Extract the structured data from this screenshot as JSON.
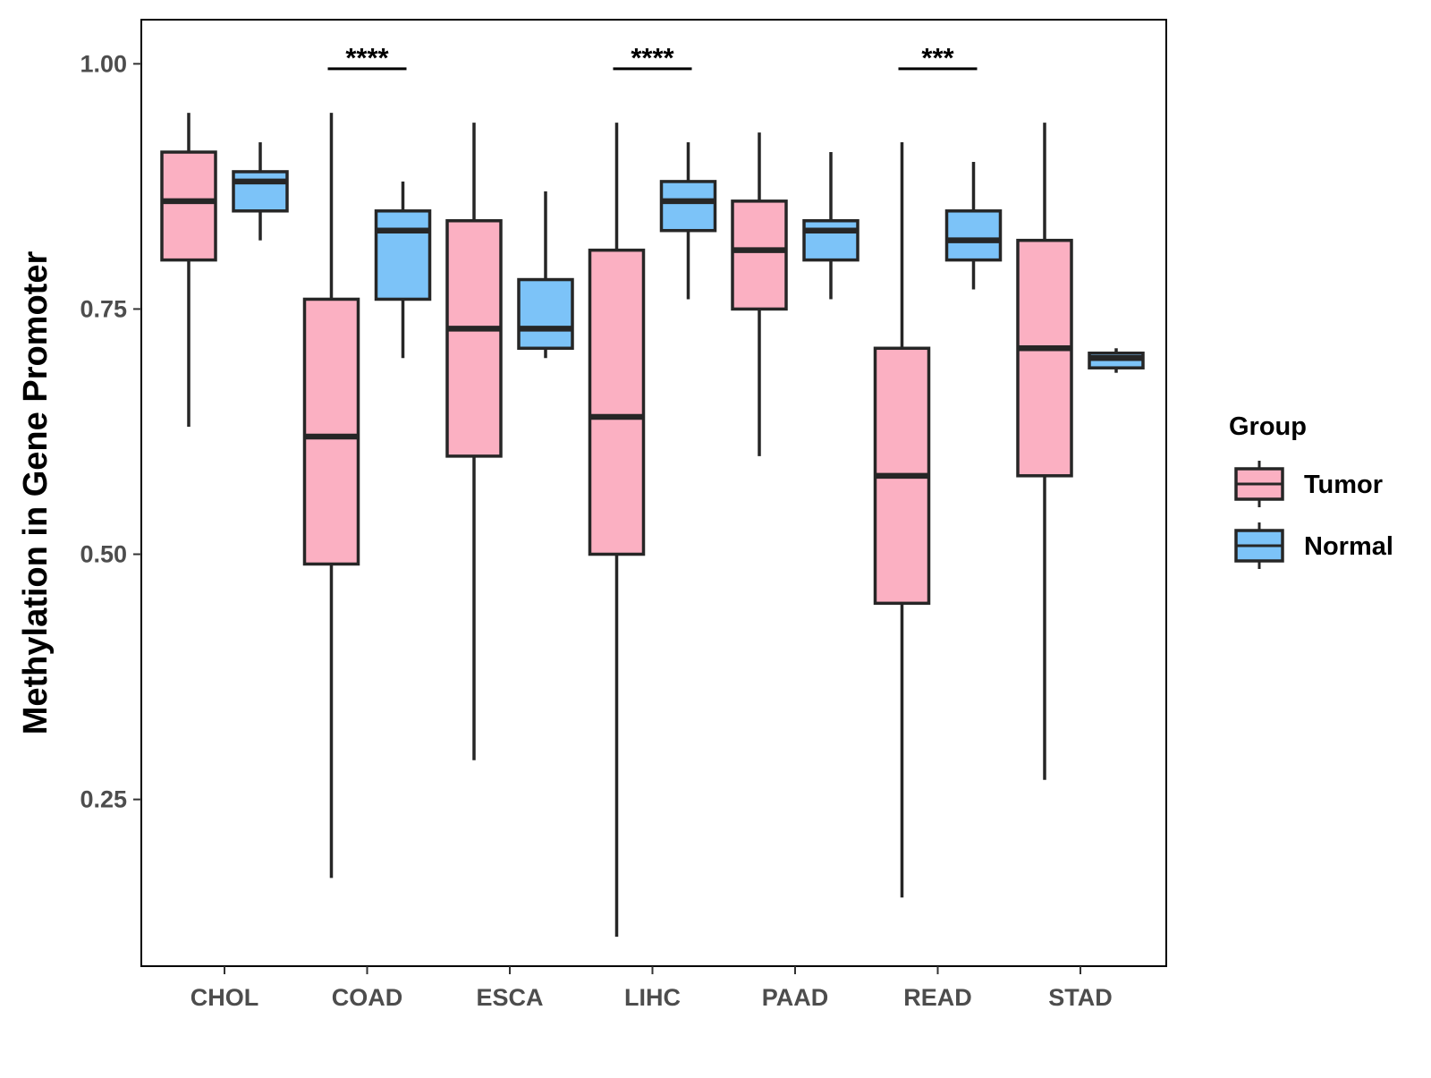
{
  "chart_data": {
    "type": "boxplot",
    "title": "",
    "xlabel": "",
    "ylabel": "Methylation in Gene Promoter",
    "ylim": [
      0.08,
      1.045
    ],
    "yticks": [
      0.25,
      0.5,
      0.75,
      1.0
    ],
    "ytick_labels": [
      "0.25",
      "0.50",
      "0.75",
      "1.00"
    ],
    "grid": false,
    "legend": {
      "title": "Group",
      "placement": "right",
      "entries": [
        {
          "name": "Tumor",
          "color": "#fbb0c2"
        },
        {
          "name": "Normal",
          "color": "#7cc3f8"
        }
      ]
    },
    "line_color": "#262626",
    "categories": [
      "CHOL",
      "COAD",
      "ESCA",
      "LIHC",
      "PAAD",
      "READ",
      "STAD"
    ],
    "series": [
      {
        "name": "Tumor",
        "color": "#fbb0c2",
        "boxes": [
          {
            "min": 0.63,
            "q1": 0.8,
            "median": 0.86,
            "q3": 0.91,
            "max": 0.95
          },
          {
            "min": 0.17,
            "q1": 0.49,
            "median": 0.62,
            "q3": 0.76,
            "max": 0.95
          },
          {
            "min": 0.29,
            "q1": 0.6,
            "median": 0.73,
            "q3": 0.84,
            "max": 0.94
          },
          {
            "min": 0.11,
            "q1": 0.5,
            "median": 0.64,
            "q3": 0.81,
            "max": 0.94
          },
          {
            "min": 0.6,
            "q1": 0.75,
            "median": 0.81,
            "q3": 0.86,
            "max": 0.93
          },
          {
            "min": 0.15,
            "q1": 0.45,
            "median": 0.58,
            "q3": 0.71,
            "max": 0.92
          },
          {
            "min": 0.27,
            "q1": 0.58,
            "median": 0.71,
            "q3": 0.82,
            "max": 0.94
          }
        ]
      },
      {
        "name": "Normal",
        "color": "#7cc3f8",
        "boxes": [
          {
            "min": 0.82,
            "q1": 0.85,
            "median": 0.88,
            "q3": 0.89,
            "max": 0.92
          },
          {
            "min": 0.7,
            "q1": 0.76,
            "median": 0.83,
            "q3": 0.85,
            "max": 0.88
          },
          {
            "min": 0.7,
            "q1": 0.71,
            "median": 0.73,
            "q3": 0.78,
            "max": 0.87
          },
          {
            "min": 0.76,
            "q1": 0.83,
            "median": 0.86,
            "q3": 0.88,
            "max": 0.92
          },
          {
            "min": 0.76,
            "q1": 0.8,
            "median": 0.83,
            "q3": 0.84,
            "max": 0.91
          },
          {
            "min": 0.77,
            "q1": 0.8,
            "median": 0.82,
            "q3": 0.85,
            "max": 0.9
          },
          {
            "min": 0.685,
            "q1": 0.69,
            "median": 0.7,
            "q3": 0.705,
            "max": 0.71
          }
        ]
      }
    ],
    "annotations": [
      {
        "category": "COAD",
        "label": "****",
        "y": 0.995
      },
      {
        "category": "LIHC",
        "label": "****",
        "y": 0.995
      },
      {
        "category": "READ",
        "label": "***",
        "y": 0.995
      }
    ]
  }
}
